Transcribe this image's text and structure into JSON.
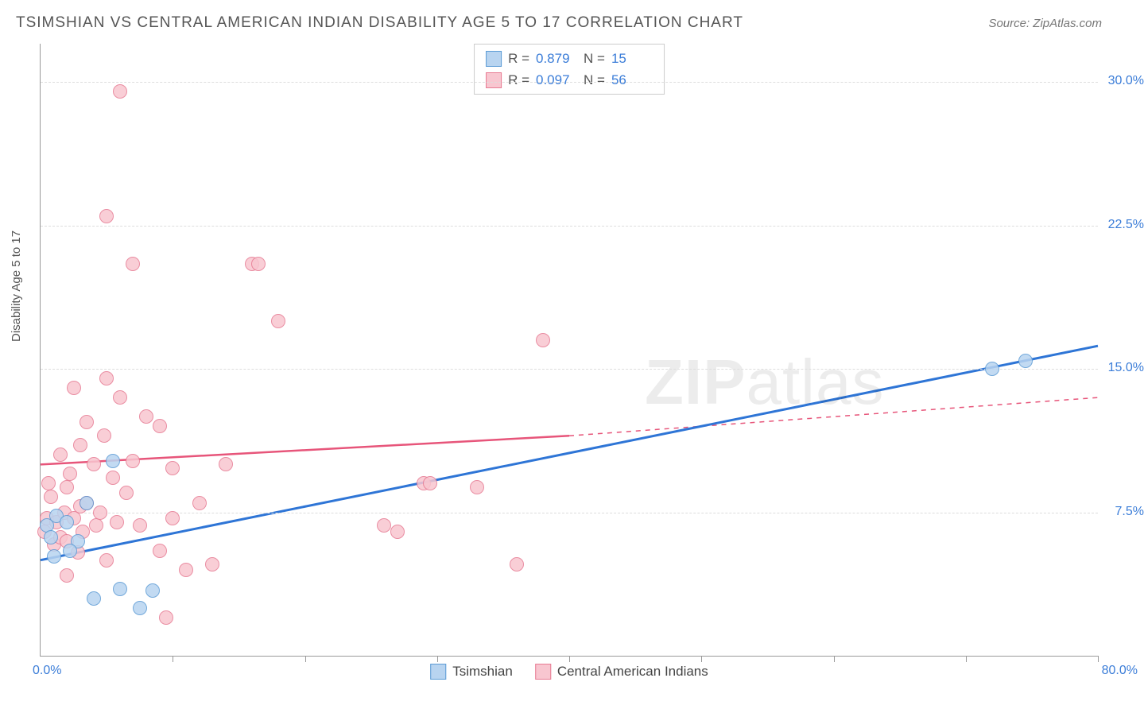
{
  "title": "TSIMSHIAN VS CENTRAL AMERICAN INDIAN DISABILITY AGE 5 TO 17 CORRELATION CHART",
  "source": "Source: ZipAtlas.com",
  "ylabel": "Disability Age 5 to 17",
  "watermark_bold": "ZIP",
  "watermark_light": "atlas",
  "chart": {
    "type": "scatter-with-trend",
    "xlim": [
      0,
      80
    ],
    "ylim": [
      0,
      32
    ],
    "xticks_count": 9,
    "yticks": [
      7.5,
      15.0,
      22.5,
      30.0
    ],
    "ytick_labels": [
      "7.5%",
      "15.0%",
      "22.5%",
      "30.0%"
    ],
    "xmin_label": "0.0%",
    "xmax_label": "80.0%",
    "grid_color": "#dddddd",
    "axis_color": "#999999",
    "background": "#ffffff",
    "point_radius": 9,
    "series": [
      {
        "name": "Tsimshian",
        "color_fill": "#b8d4f0",
        "color_stroke": "#5b9bd5",
        "trend_color": "#2e75d6",
        "R": "0.879",
        "N": "15",
        "trend": {
          "x1": 0,
          "y1": 5.0,
          "x2": 80,
          "y2": 16.2
        },
        "points": [
          {
            "x": 0.5,
            "y": 6.8
          },
          {
            "x": 1.2,
            "y": 7.3
          },
          {
            "x": 2.0,
            "y": 7.0
          },
          {
            "x": 2.8,
            "y": 6.0
          },
          {
            "x": 3.5,
            "y": 8.0
          },
          {
            "x": 4.0,
            "y": 3.0
          },
          {
            "x": 5.5,
            "y": 10.2
          },
          {
            "x": 6.0,
            "y": 3.5
          },
          {
            "x": 7.5,
            "y": 2.5
          },
          {
            "x": 8.5,
            "y": 3.4
          },
          {
            "x": 1.0,
            "y": 5.2
          },
          {
            "x": 2.2,
            "y": 5.5
          },
          {
            "x": 72.0,
            "y": 15.0
          },
          {
            "x": 74.5,
            "y": 15.4
          },
          {
            "x": 0.8,
            "y": 6.2
          }
        ]
      },
      {
        "name": "Central American Indians",
        "color_fill": "#f8c6d0",
        "color_stroke": "#e77a92",
        "trend_color": "#e7557a",
        "R": "0.097",
        "N": "56",
        "trend_solid": {
          "x1": 0,
          "y1": 10.0,
          "x2": 40,
          "y2": 11.5
        },
        "trend_dash": {
          "x1": 40,
          "y1": 11.5,
          "x2": 80,
          "y2": 13.5
        },
        "points": [
          {
            "x": 0.3,
            "y": 6.5
          },
          {
            "x": 0.5,
            "y": 7.2
          },
          {
            "x": 0.8,
            "y": 8.3
          },
          {
            "x": 1.0,
            "y": 5.8
          },
          {
            "x": 1.2,
            "y": 7.0
          },
          {
            "x": 1.5,
            "y": 6.2
          },
          {
            "x": 1.5,
            "y": 10.5
          },
          {
            "x": 1.8,
            "y": 7.5
          },
          {
            "x": 2.0,
            "y": 8.8
          },
          {
            "x": 2.0,
            "y": 6.0
          },
          {
            "x": 2.2,
            "y": 9.5
          },
          {
            "x": 2.5,
            "y": 14.0
          },
          {
            "x": 2.5,
            "y": 7.2
          },
          {
            "x": 2.8,
            "y": 5.4
          },
          {
            "x": 3.0,
            "y": 11.0
          },
          {
            "x": 3.0,
            "y": 7.8
          },
          {
            "x": 3.2,
            "y": 6.5
          },
          {
            "x": 3.5,
            "y": 12.2
          },
          {
            "x": 3.5,
            "y": 8.0
          },
          {
            "x": 4.0,
            "y": 10.0
          },
          {
            "x": 4.2,
            "y": 6.8
          },
          {
            "x": 4.5,
            "y": 7.5
          },
          {
            "x": 4.8,
            "y": 11.5
          },
          {
            "x": 5.0,
            "y": 5.0
          },
          {
            "x": 5.0,
            "y": 14.5
          },
          {
            "x": 5.0,
            "y": 23.0
          },
          {
            "x": 5.5,
            "y": 9.3
          },
          {
            "x": 5.8,
            "y": 7.0
          },
          {
            "x": 6.0,
            "y": 13.5
          },
          {
            "x": 6.0,
            "y": 29.5
          },
          {
            "x": 6.5,
            "y": 8.5
          },
          {
            "x": 7.0,
            "y": 20.5
          },
          {
            "x": 7.0,
            "y": 10.2
          },
          {
            "x": 7.5,
            "y": 6.8
          },
          {
            "x": 8.0,
            "y": 12.5
          },
          {
            "x": 9.0,
            "y": 12.0
          },
          {
            "x": 9.0,
            "y": 5.5
          },
          {
            "x": 9.5,
            "y": 2.0
          },
          {
            "x": 10.0,
            "y": 9.8
          },
          {
            "x": 10.0,
            "y": 7.2
          },
          {
            "x": 11.0,
            "y": 4.5
          },
          {
            "x": 12.0,
            "y": 8.0
          },
          {
            "x": 13.0,
            "y": 4.8
          },
          {
            "x": 14.0,
            "y": 10.0
          },
          {
            "x": 16.0,
            "y": 20.5
          },
          {
            "x": 16.5,
            "y": 20.5
          },
          {
            "x": 18.0,
            "y": 17.5
          },
          {
            "x": 26.0,
            "y": 6.8
          },
          {
            "x": 27.0,
            "y": 6.5
          },
          {
            "x": 29.0,
            "y": 9.0
          },
          {
            "x": 29.5,
            "y": 9.0
          },
          {
            "x": 33.0,
            "y": 8.8
          },
          {
            "x": 36.0,
            "y": 4.8
          },
          {
            "x": 38.0,
            "y": 16.5
          },
          {
            "x": 2.0,
            "y": 4.2
          },
          {
            "x": 0.6,
            "y": 9.0
          }
        ]
      }
    ]
  }
}
